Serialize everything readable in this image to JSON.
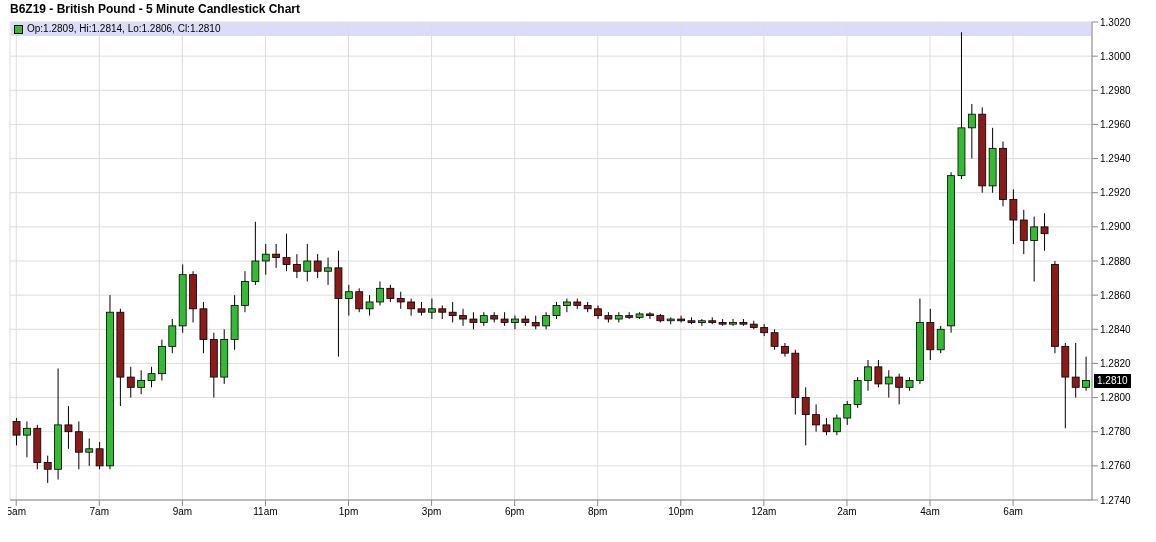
{
  "chart_data": {
    "type": "candlestick",
    "title": "B6Z19 - British Pound - 5 Minute Candlestick Chart",
    "annotations": [
      "Op:1.2809, Hi:1.2814, Lo:1.2806, Cl:1.2810",
      {
        "text": "1.2810",
        "y": 1.281
      }
    ],
    "categories": [
      "5am",
      null,
      null,
      null,
      null,
      null,
      null,
      null,
      "7am",
      null,
      null,
      null,
      null,
      null,
      null,
      null,
      "9am",
      null,
      null,
      null,
      null,
      null,
      null,
      null,
      "11am",
      null,
      null,
      null,
      null,
      null,
      null,
      null,
      "1pm",
      null,
      null,
      null,
      null,
      null,
      null,
      null,
      "3pm",
      null,
      null,
      null,
      null,
      null,
      null,
      null,
      "6pm",
      null,
      null,
      null,
      null,
      null,
      null,
      null,
      "8pm",
      null,
      null,
      null,
      null,
      null,
      null,
      null,
      "10pm",
      null,
      null,
      null,
      null,
      null,
      null,
      null,
      "12am",
      null,
      null,
      null,
      null,
      null,
      null,
      null,
      "2am",
      null,
      null,
      null,
      null,
      null,
      null,
      null,
      "4am",
      null,
      null,
      null,
      null,
      null,
      null,
      null,
      "6am",
      null,
      null,
      null,
      null,
      null,
      null,
      null
    ],
    "ohlc": [
      [
        1.2786,
        1.2788,
        1.2772,
        1.2778
      ],
      [
        1.2778,
        1.2786,
        1.2765,
        1.2782
      ],
      [
        1.2782,
        1.2784,
        1.2758,
        1.2762
      ],
      [
        1.2762,
        1.2766,
        1.275,
        1.2758
      ],
      [
        1.2758,
        1.2817,
        1.2752,
        1.2784
      ],
      [
        1.2784,
        1.2795,
        1.277,
        1.278
      ],
      [
        1.278,
        1.2786,
        1.2758,
        1.2768
      ],
      [
        1.2768,
        1.2776,
        1.276,
        1.277
      ],
      [
        1.277,
        1.2774,
        1.2758,
        1.276
      ],
      [
        1.276,
        1.286,
        1.2758,
        1.285
      ],
      [
        1.285,
        1.2852,
        1.2795,
        1.2812
      ],
      [
        1.2812,
        1.2818,
        1.28,
        1.2806
      ],
      [
        1.2806,
        1.2816,
        1.2802,
        1.281
      ],
      [
        1.281,
        1.2818,
        1.2806,
        1.2814
      ],
      [
        1.2814,
        1.2834,
        1.281,
        1.283
      ],
      [
        1.283,
        1.2846,
        1.2826,
        1.2842
      ],
      [
        1.2842,
        1.2878,
        1.2838,
        1.2872
      ],
      [
        1.2872,
        1.2874,
        1.2844,
        1.2852
      ],
      [
        1.2852,
        1.2856,
        1.2826,
        1.2834
      ],
      [
        1.2834,
        1.2838,
        1.28,
        1.2812
      ],
      [
        1.2812,
        1.284,
        1.2808,
        1.2834
      ],
      [
        1.2834,
        1.286,
        1.2828,
        1.2854
      ],
      [
        1.2854,
        1.2874,
        1.285,
        1.2868
      ],
      [
        1.2868,
        1.2903,
        1.2866,
        1.288
      ],
      [
        1.288,
        1.289,
        1.2872,
        1.2884
      ],
      [
        1.2884,
        1.289,
        1.2876,
        1.2882
      ],
      [
        1.2882,
        1.2896,
        1.2874,
        1.2878
      ],
      [
        1.2878,
        1.2884,
        1.287,
        1.2874
      ],
      [
        1.2874,
        1.289,
        1.2868,
        1.288
      ],
      [
        1.288,
        1.2884,
        1.287,
        1.2874
      ],
      [
        1.2874,
        1.2882,
        1.2866,
        1.2876
      ],
      [
        1.2876,
        1.2886,
        1.2824,
        1.2858
      ],
      [
        1.2858,
        1.2866,
        1.2848,
        1.2862
      ],
      [
        1.2862,
        1.2864,
        1.285,
        1.2852
      ],
      [
        1.2852,
        1.286,
        1.2848,
        1.2856
      ],
      [
        1.2856,
        1.2868,
        1.2854,
        1.2864
      ],
      [
        1.2864,
        1.2866,
        1.2856,
        1.2858
      ],
      [
        1.2858,
        1.2862,
        1.2852,
        1.2856
      ],
      [
        1.2856,
        1.2858,
        1.2848,
        1.2852
      ],
      [
        1.2852,
        1.2856,
        1.2848,
        1.285
      ],
      [
        1.285,
        1.2858,
        1.2846,
        1.2852
      ],
      [
        1.2852,
        1.2854,
        1.2846,
        1.285
      ],
      [
        1.285,
        1.2856,
        1.2844,
        1.2848
      ],
      [
        1.2848,
        1.2852,
        1.2842,
        1.2846
      ],
      [
        1.2846,
        1.285,
        1.284,
        1.2844
      ],
      [
        1.2844,
        1.285,
        1.2842,
        1.2848
      ],
      [
        1.2848,
        1.285,
        1.2844,
        1.2846
      ],
      [
        1.2846,
        1.285,
        1.2842,
        1.2844
      ],
      [
        1.2844,
        1.2848,
        1.284,
        1.2846
      ],
      [
        1.2846,
        1.2848,
        1.2842,
        1.2844
      ],
      [
        1.2844,
        1.2848,
        1.284,
        1.2842
      ],
      [
        1.2842,
        1.285,
        1.284,
        1.2848
      ],
      [
        1.2848,
        1.2856,
        1.2846,
        1.2854
      ],
      [
        1.2854,
        1.2858,
        1.285,
        1.2856
      ],
      [
        1.2856,
        1.2858,
        1.2852,
        1.2854
      ],
      [
        1.2854,
        1.2856,
        1.285,
        1.2852
      ],
      [
        1.2852,
        1.2854,
        1.2846,
        1.2848
      ],
      [
        1.2848,
        1.285,
        1.2844,
        1.2846
      ],
      [
        1.2846,
        1.285,
        1.2844,
        1.2848
      ],
      [
        1.2848,
        1.285,
        1.2846,
        1.2847
      ],
      [
        1.2847,
        1.285,
        1.2846,
        1.2849
      ],
      [
        1.2849,
        1.285,
        1.2846,
        1.2848
      ],
      [
        1.2848,
        1.2849,
        1.2844,
        1.2845
      ],
      [
        1.2845,
        1.2847,
        1.2843,
        1.2846
      ],
      [
        1.2846,
        1.2848,
        1.2844,
        1.2845
      ],
      [
        1.2845,
        1.2847,
        1.2843,
        1.2844
      ],
      [
        1.2844,
        1.2846,
        1.2842,
        1.2845
      ],
      [
        1.2845,
        1.2847,
        1.2843,
        1.2844
      ],
      [
        1.2844,
        1.2846,
        1.2842,
        1.2843
      ],
      [
        1.2843,
        1.2846,
        1.2842,
        1.2844
      ],
      [
        1.2844,
        1.2846,
        1.2842,
        1.2843
      ],
      [
        1.2843,
        1.2845,
        1.284,
        1.2841
      ],
      [
        1.2841,
        1.2843,
        1.2836,
        1.2838
      ],
      [
        1.2838,
        1.284,
        1.2828,
        1.283
      ],
      [
        1.283,
        1.2832,
        1.2824,
        1.2826
      ],
      [
        1.2826,
        1.2828,
        1.279,
        1.28
      ],
      [
        1.28,
        1.2806,
        1.2772,
        1.279
      ],
      [
        1.279,
        1.2796,
        1.278,
        1.2784
      ],
      [
        1.2784,
        1.2788,
        1.2778,
        1.278
      ],
      [
        1.278,
        1.279,
        1.2778,
        1.2788
      ],
      [
        1.2788,
        1.2798,
        1.2784,
        1.2796
      ],
      [
        1.2796,
        1.2812,
        1.2794,
        1.281
      ],
      [
        1.281,
        1.2822,
        1.2804,
        1.2818
      ],
      [
        1.2818,
        1.2822,
        1.2806,
        1.2808
      ],
      [
        1.2808,
        1.2816,
        1.28,
        1.2812
      ],
      [
        1.2812,
        1.2814,
        1.2796,
        1.2806
      ],
      [
        1.2806,
        1.2812,
        1.2804,
        1.281
      ],
      [
        1.281,
        1.2858,
        1.2808,
        1.2844
      ],
      [
        1.2844,
        1.2852,
        1.2822,
        1.2828
      ],
      [
        1.2828,
        1.2842,
        1.2826,
        1.284
      ],
      [
        1.2842,
        1.2932,
        1.2838,
        1.293
      ],
      [
        1.293,
        1.3014,
        1.2928,
        1.2958
      ],
      [
        1.2958,
        1.2972,
        1.294,
        1.2966
      ],
      [
        1.2966,
        1.297,
        1.292,
        1.2924
      ],
      [
        1.2924,
        1.2958,
        1.292,
        1.2946
      ],
      [
        1.2946,
        1.295,
        1.2912,
        1.2916
      ],
      [
        1.2916,
        1.2922,
        1.289,
        1.2904
      ],
      [
        1.2904,
        1.291,
        1.2884,
        1.2892
      ],
      [
        1.2892,
        1.2906,
        1.2868,
        1.29
      ],
      [
        1.29,
        1.2908,
        1.2886,
        1.2896
      ],
      [
        1.2878,
        1.288,
        1.2826,
        1.283
      ],
      [
        1.283,
        1.2832,
        1.2782,
        1.2812
      ],
      [
        1.2812,
        1.2832,
        1.28,
        1.2806
      ],
      [
        1.2806,
        1.2824,
        1.2804,
        1.281
      ]
    ],
    "ylim": [
      1.274,
      1.302
    ],
    "yticks": [
      {
        "value": 1.274,
        "label": "1.2740"
      },
      {
        "value": 1.276,
        "label": "1.2760"
      },
      {
        "value": 1.278,
        "label": "1.2780"
      },
      {
        "value": 1.28,
        "label": "1.2800"
      },
      {
        "value": 1.282,
        "label": "1.2820"
      },
      {
        "value": 1.284,
        "label": "1.2840"
      },
      {
        "value": 1.286,
        "label": "1.2860"
      },
      {
        "value": 1.288,
        "label": "1.2880"
      },
      {
        "value": 1.29,
        "label": "1.2900"
      },
      {
        "value": 1.292,
        "label": "1.2920"
      },
      {
        "value": 1.294,
        "label": "1.2940"
      },
      {
        "value": 1.296,
        "label": "1.2960"
      },
      {
        "value": 1.298,
        "label": "1.2980"
      },
      {
        "value": 1.3,
        "label": "1.3000"
      },
      {
        "value": 1.302,
        "label": "1.3020"
      }
    ],
    "grid": true
  }
}
